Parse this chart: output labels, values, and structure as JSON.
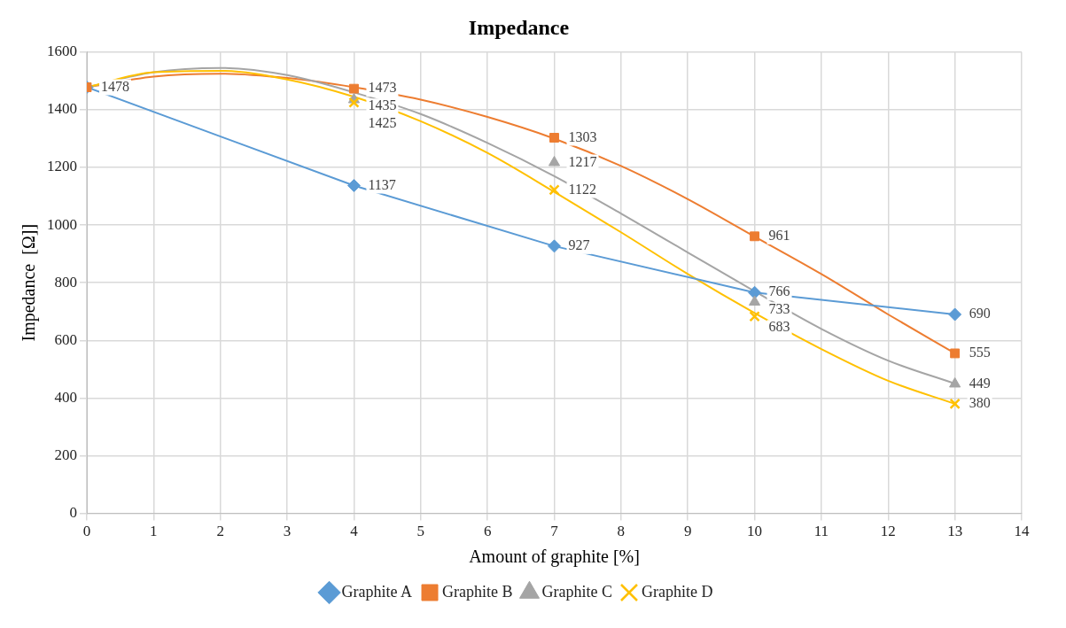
{
  "chart_data": {
    "type": "line",
    "title": "Impedance",
    "xlabel": "Amount of graphite [%]",
    "ylabel": "Impedance  [Ω]]",
    "xlim": [
      0,
      14
    ],
    "xticks": [
      0,
      1,
      2,
      3,
      4,
      5,
      6,
      7,
      8,
      9,
      10,
      11,
      12,
      13,
      14
    ],
    "ylim": [
      0,
      1600
    ],
    "yticks": [
      0,
      200,
      400,
      600,
      800,
      1000,
      1200,
      1400,
      1600
    ],
    "grid": true,
    "legend": "bottom",
    "series": [
      {
        "name": "Graphite A",
        "color": "#5b9bd5",
        "marker": "diamond",
        "x": [
          0,
          4,
          7,
          10,
          13
        ],
        "values": [
          1478,
          1137,
          927,
          766,
          690
        ],
        "value_labels": [
          "1478",
          "1137",
          "927",
          "766",
          "690"
        ]
      },
      {
        "name": "Graphite B",
        "type": "scatter",
        "color": "#ed7d31",
        "marker": "square",
        "x": [
          0,
          4,
          7,
          10,
          13
        ],
        "values": [
          1478,
          1473,
          1303,
          961,
          555
        ],
        "value_labels": [
          null,
          "1473",
          "1303",
          "961",
          "555"
        ]
      },
      {
        "name": "Graphite C",
        "type": "scatter",
        "color": "#a5a5a5",
        "marker": "triangle",
        "x": [
          4,
          7,
          10,
          13
        ],
        "values": [
          1435,
          1217,
          733,
          449
        ],
        "value_labels": [
          "1435",
          "1217",
          "733",
          "449"
        ]
      },
      {
        "name": "Graphite D",
        "type": "scatter",
        "color": "#ffc000",
        "marker": "cross",
        "x": [
          4,
          7,
          10,
          13
        ],
        "values": [
          1425,
          1122,
          683,
          380
        ],
        "value_labels": [
          "1425",
          "1122",
          "683",
          "380"
        ]
      },
      {
        "type": "line",
        "color": "#ed7d31",
        "marker": "none",
        "x": [
          0,
          1,
          2,
          3,
          4,
          5,
          6,
          7,
          8,
          9,
          10,
          11,
          12,
          13
        ],
        "values": [
          1478,
          1515,
          1525,
          1510,
          1478,
          1435,
          1375,
          1300,
          1205,
          1090,
          960,
          830,
          690,
          555
        ]
      },
      {
        "type": "line",
        "color": "#a5a5a5",
        "marker": "none",
        "x": [
          0,
          1,
          2,
          3,
          4,
          5,
          6,
          7,
          8,
          9,
          10,
          11,
          12,
          13
        ],
        "values": [
          1478,
          1530,
          1545,
          1520,
          1460,
          1385,
          1285,
          1170,
          1040,
          905,
          770,
          640,
          530,
          450
        ]
      },
      {
        "type": "line",
        "color": "#ffc000",
        "marker": "none",
        "x": [
          0,
          1,
          2,
          3,
          4,
          5,
          6,
          7,
          8,
          9,
          10,
          11,
          12,
          13
        ],
        "values": [
          1478,
          1530,
          1535,
          1505,
          1445,
          1360,
          1250,
          1115,
          975,
          830,
          695,
          570,
          460,
          380
        ]
      }
    ]
  }
}
